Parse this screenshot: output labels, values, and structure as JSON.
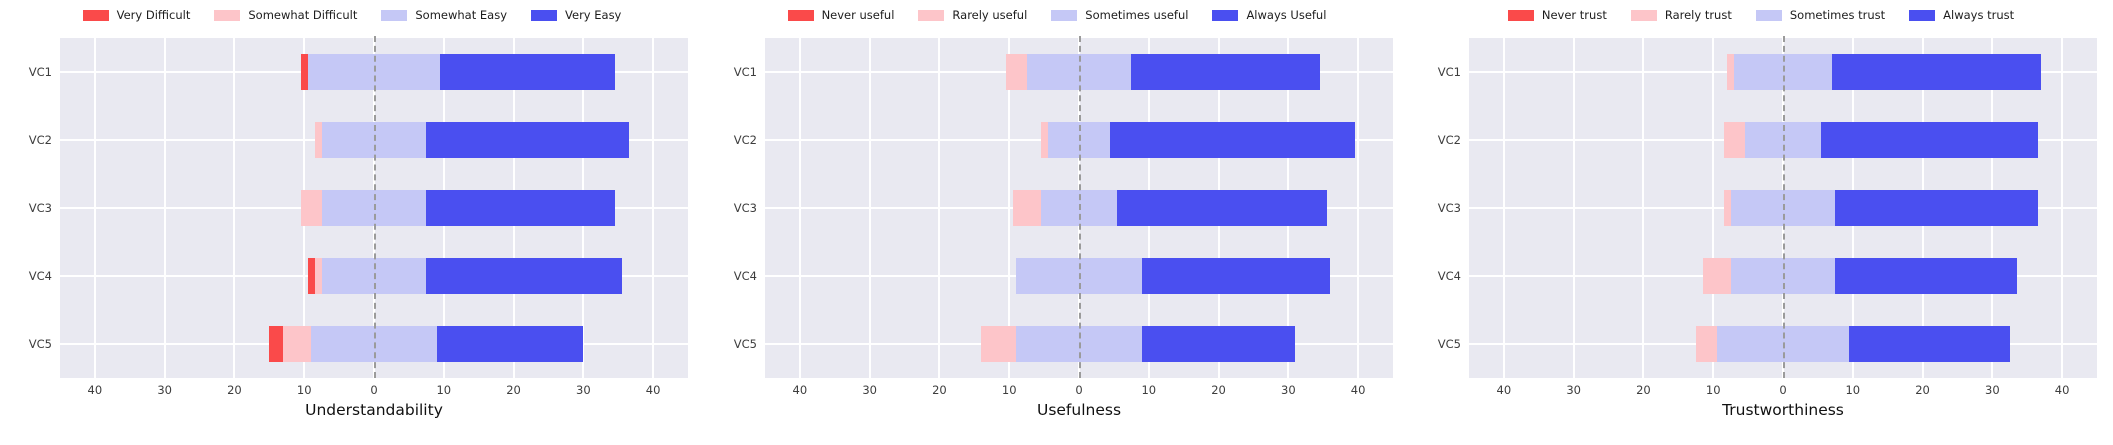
{
  "figure": {
    "description": "Three diverging stacked Likert bar charts",
    "panel_count": 3
  },
  "colors": {
    "strong_negative": "#fa4a4a",
    "negative": "#fdc5c9",
    "positive_mid": "#c5c8f6",
    "strong_positive": "#4a4ff0",
    "plot_background": "#e9e9f1",
    "gridline": "#ffffff",
    "zero_line": "#9b9b9b",
    "tick_text": "#3d3d3d",
    "title_text": "#111111"
  },
  "chart_data": [
    {
      "type": "bar",
      "variant": "diverging-stacked-likert-horizontal",
      "title": "Understandability",
      "xlabel": "Understandability",
      "categories": [
        "VC1",
        "VC2",
        "VC3",
        "VC4",
        "VC5"
      ],
      "legend": [
        "Very Difficult",
        "Somewhat Difficult",
        "Somewhat Easy",
        "Very Easy"
      ],
      "series": [
        {
          "name": "Very Difficult",
          "values": [
            1,
            0,
            0,
            1,
            2
          ]
        },
        {
          "name": "Somewhat Difficult",
          "values": [
            0,
            1,
            3,
            1,
            4
          ]
        },
        {
          "name": "Somewhat Easy",
          "values": [
            19,
            15,
            15,
            15,
            18
          ]
        },
        {
          "name": "Very Easy",
          "values": [
            25,
            29,
            27,
            28,
            21
          ]
        }
      ],
      "xlim": [
        -45,
        45
      ],
      "x_tick_values": [
        -40,
        -30,
        -20,
        -10,
        0,
        10,
        20,
        30,
        40
      ],
      "x_tick_labels": [
        "40",
        "30",
        "20",
        "10",
        "0",
        "10",
        "20",
        "30",
        "40"
      ],
      "alignment": "third category centered on zero",
      "zero_line_style": "dashed",
      "grid": true,
      "legend_position": "top-center"
    },
    {
      "type": "bar",
      "variant": "diverging-stacked-likert-horizontal",
      "title": "Usefulness",
      "xlabel": "Usefulness",
      "categories": [
        "VC1",
        "VC2",
        "VC3",
        "VC4",
        "VC5"
      ],
      "legend": [
        "Never useful",
        "Rarely useful",
        "Sometimes useful",
        "Always Useful"
      ],
      "series": [
        {
          "name": "Never useful",
          "values": [
            0,
            0,
            0,
            0,
            0
          ]
        },
        {
          "name": "Rarely useful",
          "values": [
            3,
            1,
            4,
            0,
            5
          ]
        },
        {
          "name": "Sometimes useful",
          "values": [
            15,
            9,
            11,
            18,
            18
          ]
        },
        {
          "name": "Always Useful",
          "values": [
            27,
            35,
            30,
            27,
            22
          ]
        }
      ],
      "xlim": [
        -45,
        45
      ],
      "x_tick_values": [
        -40,
        -30,
        -20,
        -10,
        0,
        10,
        20,
        30,
        40
      ],
      "x_tick_labels": [
        "40",
        "30",
        "20",
        "10",
        "0",
        "10",
        "20",
        "30",
        "40"
      ],
      "alignment": "third category centered on zero",
      "zero_line_style": "dashed",
      "grid": true,
      "legend_position": "top-center"
    },
    {
      "type": "bar",
      "variant": "diverging-stacked-likert-horizontal",
      "title": "Trustworthiness",
      "xlabel": "Trustworthiness",
      "categories": [
        "VC1",
        "VC2",
        "VC3",
        "VC4",
        "VC5"
      ],
      "legend": [
        "Never trust",
        "Rarely trust",
        "Sometimes trust",
        "Always trust"
      ],
      "series": [
        {
          "name": "Never trust",
          "values": [
            0,
            0,
            0,
            0,
            0
          ]
        },
        {
          "name": "Rarely trust",
          "values": [
            1,
            3,
            1,
            4,
            3
          ]
        },
        {
          "name": "Sometimes trust",
          "values": [
            14,
            11,
            15,
            15,
            19
          ]
        },
        {
          "name": "Always trust",
          "values": [
            30,
            31,
            29,
            26,
            23
          ]
        }
      ],
      "xlim": [
        -45,
        45
      ],
      "x_tick_values": [
        -40,
        -30,
        -20,
        -10,
        0,
        10,
        20,
        30,
        40
      ],
      "x_tick_labels": [
        "40",
        "30",
        "20",
        "10",
        "0",
        "10",
        "20",
        "30",
        "40"
      ],
      "alignment": "third category centered on zero",
      "zero_line_style": "dashed",
      "grid": true,
      "legend_position": "top-center"
    }
  ]
}
